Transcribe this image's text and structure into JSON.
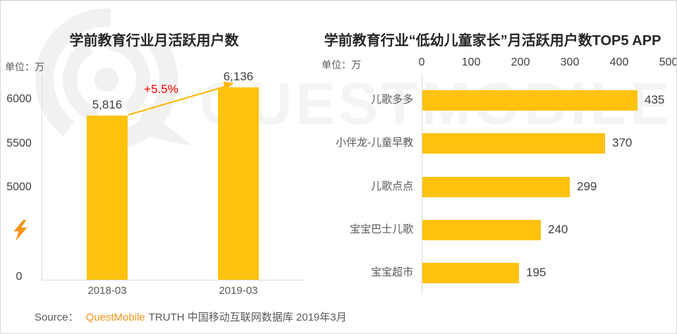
{
  "page": {
    "watermark_text": "QUESTMOBILE",
    "source": {
      "prefix": "Source：",
      "brand": "QuestMobile",
      "rest": "TRUTH 中国移动互联网数据库 2019年3月"
    }
  },
  "colors": {
    "bar_yellow": "#FFC20E",
    "arrow_yellow": "#FFB500",
    "brand_orange": "#F7941D",
    "growth_red": "#FF0000",
    "axis_gray": "#D9D9D9",
    "text_dark": "#404040",
    "text_gray": "#595959",
    "title_color": "#262626",
    "watermark_gray": "#F2F2F2"
  },
  "chart_data": [
    {
      "type": "bar",
      "orientation": "vertical",
      "title": "学前教育行业月活跃用户数",
      "unit_label": "单位：万",
      "categories": [
        "2018-03",
        "2019-03"
      ],
      "values": [
        5816,
        6136
      ],
      "value_labels": [
        "5,816",
        "6,136"
      ],
      "annotation": "+5.5%",
      "y_ticks": [
        6000,
        5500,
        5000,
        0
      ],
      "axis_break": true,
      "axis_break_icon": "lightning-icon",
      "ylim_visible": [
        5000,
        6200
      ],
      "bar_color": "#FFC20E",
      "grid": false
    },
    {
      "type": "bar",
      "orientation": "horizontal",
      "title": "学前教育行业“低幼儿童家长”月活跃用户数TOP5 APP",
      "unit_label": "单位：万",
      "categories": [
        "儿歌多多",
        "小伴龙-儿童早教",
        "儿歌点点",
        "宝宝巴士儿歌",
        "宝宝超市"
      ],
      "values": [
        435,
        370,
        299,
        240,
        195
      ],
      "x_ticks": [
        0,
        100,
        200,
        300,
        400,
        500
      ],
      "xlim": [
        0,
        500
      ],
      "tick_position": "top",
      "bar_color": "#FFC20E",
      "grid": false
    }
  ]
}
